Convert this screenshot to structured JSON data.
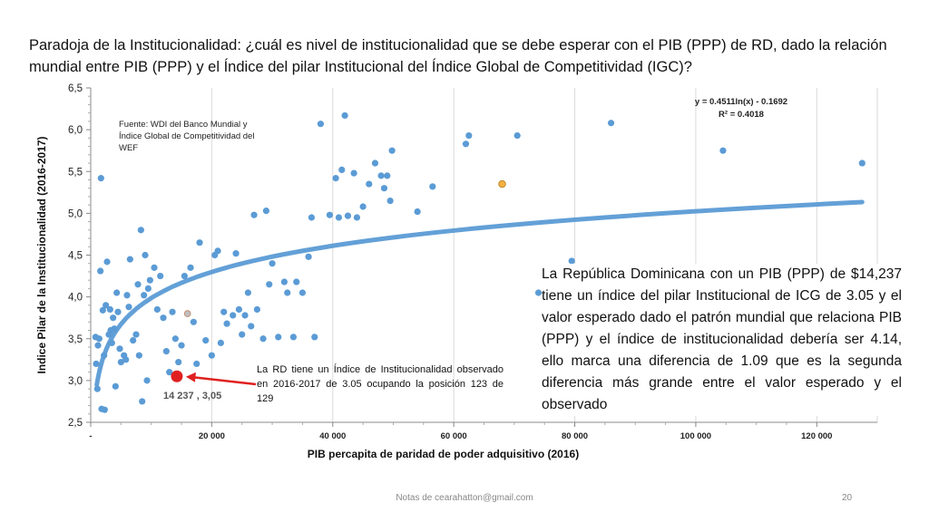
{
  "slide": {
    "title": "Paradoja de la Institucionalidad: ¿cuál es nivel de institucionalidad que se debe esperar con el PIB (PPP) de RD, dado la relación mundial entre PIB (PPP) y el Índice del pilar Institucional del Índice Global de Competitividad (IGC)?",
    "source_note": "Fuente: WDI del Banco Mundial y Índice Global de Competitividad del WEF",
    "equation_line1": "y = 0.4511ln(x) - 0.1692",
    "equation_line2": "R² = 0.4018",
    "main_annotation": "La República Dominicana con un PIB (PPP) de $14,237 tiene un índice del pilar Institucional de ICG de 3.05 y el valor esperado dado el patrón mundial que relaciona PIB (PPP) y el índice de institucionalidad debería ser 4.14, ello marca una diferencia de 1.09 que es la segunda diferencia más grande entre el valor esperado y el observado",
    "rd_callout": "La RD tiene un Índice de Institucionalidad observado en 2016-2017 de 3.05 ocupando la posición 123 de 129",
    "rd_point_label": "14 237 , 3,05",
    "footer": "Notas de cearahatton@gmail.com",
    "page_number": "20"
  },
  "colors": {
    "points": "#5b9bd5",
    "trendline": "#5b9bd5",
    "highlight_point": "#f4b041",
    "rd_point": "#e02020",
    "arrow": "#e02020",
    "gray_point": "#bfbfbf"
  },
  "chart_data": {
    "type": "scatter",
    "xlabel": "PIB percapita de paridad de poder adquisitivo (2016)",
    "ylabel": "Indice Pilar de la Institucionalidad (2016-2017)",
    "xlim": [
      0,
      130000
    ],
    "ylim": [
      2.5,
      6.5
    ],
    "x_ticks": [
      0,
      20000,
      40000,
      60000,
      80000,
      100000,
      120000
    ],
    "x_tick_labels": [
      "-",
      "20 000",
      "40 000",
      "60 000",
      "80 000",
      "100 000",
      "120 000"
    ],
    "y_ticks": [
      2.5,
      3.0,
      3.5,
      4.0,
      4.5,
      5.0,
      5.5,
      6.0,
      6.5
    ],
    "y_tick_labels": [
      "2,5",
      "3,0",
      "3,5",
      "4,0",
      "4,5",
      "5,0",
      "5,5",
      "6,0",
      "6,5"
    ],
    "grid": "vertical",
    "trendline": {
      "type": "logarithmic",
      "a": 0.4511,
      "b": -0.1692,
      "x_range": [
        1000,
        127500
      ]
    },
    "highlight": [
      {
        "name": "RD",
        "x": 14237,
        "y": 3.05
      },
      {
        "x": 68000,
        "y": 5.35
      },
      {
        "x": 16000,
        "y": 3.8
      }
    ],
    "points": [
      [
        800,
        3.52
      ],
      [
        900,
        3.2
      ],
      [
        1100,
        2.9
      ],
      [
        1200,
        3.42
      ],
      [
        1400,
        3.5
      ],
      [
        1600,
        4.31
      ],
      [
        1700,
        5.42
      ],
      [
        1800,
        2.66
      ],
      [
        2000,
        3.84
      ],
      [
        2200,
        3.3
      ],
      [
        2300,
        2.65
      ],
      [
        2500,
        3.9
      ],
      [
        2700,
        4.42
      ],
      [
        3000,
        3.55
      ],
      [
        3200,
        3.85
      ],
      [
        3300,
        3.6
      ],
      [
        3500,
        3.45
      ],
      [
        3700,
        3.75
      ],
      [
        3900,
        3.62
      ],
      [
        4100,
        2.93
      ],
      [
        4300,
        4.05
      ],
      [
        4500,
        3.82
      ],
      [
        4800,
        3.38
      ],
      [
        5000,
        3.22
      ],
      [
        5500,
        3.3
      ],
      [
        5800,
        3.25
      ],
      [
        6000,
        4.02
      ],
      [
        6300,
        3.88
      ],
      [
        6500,
        4.45
      ],
      [
        7000,
        3.48
      ],
      [
        7500,
        3.55
      ],
      [
        7800,
        4.15
      ],
      [
        8000,
        3.3
      ],
      [
        8300,
        4.8
      ],
      [
        8500,
        2.75
      ],
      [
        8800,
        4.02
      ],
      [
        9000,
        4.5
      ],
      [
        9300,
        3.0
      ],
      [
        9500,
        4.1
      ],
      [
        9800,
        4.2
      ],
      [
        10500,
        4.35
      ],
      [
        11000,
        3.85
      ],
      [
        11500,
        4.25
      ],
      [
        12000,
        3.75
      ],
      [
        12500,
        3.35
      ],
      [
        13000,
        3.1
      ],
      [
        13500,
        3.82
      ],
      [
        14000,
        3.5
      ],
      [
        14500,
        3.22
      ],
      [
        15000,
        3.42
      ],
      [
        15500,
        4.25
      ],
      [
        16500,
        4.35
      ],
      [
        17000,
        3.7
      ],
      [
        17500,
        3.2
      ],
      [
        18000,
        4.65
      ],
      [
        19000,
        3.48
      ],
      [
        20000,
        3.3
      ],
      [
        20500,
        4.5
      ],
      [
        21000,
        4.55
      ],
      [
        21500,
        3.45
      ],
      [
        22000,
        3.82
      ],
      [
        22500,
        3.68
      ],
      [
        23500,
        3.78
      ],
      [
        24000,
        4.52
      ],
      [
        24500,
        3.85
      ],
      [
        25000,
        3.55
      ],
      [
        25500,
        3.78
      ],
      [
        26000,
        4.05
      ],
      [
        26500,
        3.65
      ],
      [
        27000,
        4.98
      ],
      [
        27500,
        3.85
      ],
      [
        28500,
        3.5
      ],
      [
        29000,
        5.03
      ],
      [
        29500,
        4.15
      ],
      [
        30000,
        4.4
      ],
      [
        31000,
        3.52
      ],
      [
        32000,
        4.18
      ],
      [
        32500,
        4.05
      ],
      [
        33500,
        3.52
      ],
      [
        34000,
        4.18
      ],
      [
        35000,
        4.05
      ],
      [
        36000,
        4.48
      ],
      [
        36500,
        4.95
      ],
      [
        37000,
        3.52
      ],
      [
        38000,
        6.07
      ],
      [
        39500,
        4.98
      ],
      [
        40500,
        5.42
      ],
      [
        41000,
        4.95
      ],
      [
        41500,
        5.52
      ],
      [
        42000,
        6.17
      ],
      [
        42500,
        4.97
      ],
      [
        43500,
        5.48
      ],
      [
        44000,
        4.95
      ],
      [
        45000,
        5.08
      ],
      [
        46000,
        5.35
      ],
      [
        47000,
        5.6
      ],
      [
        48000,
        5.45
      ],
      [
        48500,
        5.3
      ],
      [
        49000,
        5.45
      ],
      [
        49500,
        5.15
      ],
      [
        49800,
        5.75
      ],
      [
        54000,
        5.02
      ],
      [
        56500,
        5.32
      ],
      [
        62000,
        5.83
      ],
      [
        62500,
        5.93
      ],
      [
        70500,
        5.93
      ],
      [
        74000,
        4.05
      ],
      [
        79500,
        4.43
      ],
      [
        86000,
        6.08
      ],
      [
        104500,
        5.75
      ],
      [
        127500,
        5.6
      ]
    ]
  }
}
